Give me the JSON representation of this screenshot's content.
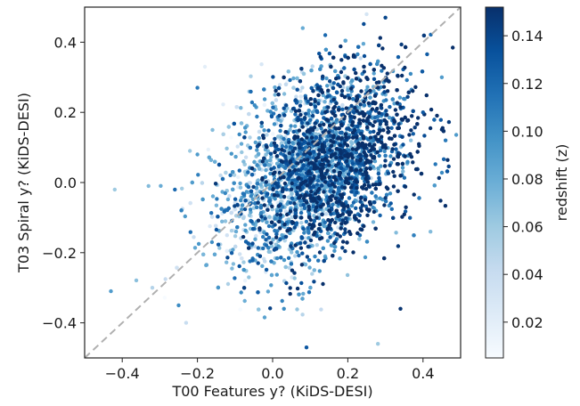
{
  "chart_data": {
    "type": "scatter",
    "xlabel": "T00 Features y? (KiDS-DESI)",
    "ylabel": "T03 Spiral y? (KiDS-DESI)",
    "xlim": [
      -0.5,
      0.5
    ],
    "ylim": [
      -0.5,
      0.5
    ],
    "x_ticks": [
      -0.4,
      -0.2,
      0.0,
      0.2,
      0.4
    ],
    "x_tick_labels": [
      "−0.4",
      "−0.2",
      "0.0",
      "0.2",
      "0.4"
    ],
    "y_ticks": [
      -0.4,
      -0.2,
      0.0,
      0.2,
      0.4
    ],
    "y_tick_labels": [
      "−0.4",
      "−0.2",
      "0.0",
      "0.2",
      "0.4"
    ],
    "grid": false,
    "reference_line": {
      "type": "y=x",
      "style": "dashed",
      "color": "#b0b0b0"
    },
    "colorbar": {
      "label": "redshift (z)",
      "colormap": "Blues",
      "range": [
        0.005,
        0.152
      ],
      "ticks": [
        0.02,
        0.04,
        0.06,
        0.08,
        0.1,
        0.12,
        0.14
      ],
      "tick_labels": [
        "0.02",
        "0.04",
        "0.06",
        "0.08",
        "0.10",
        "0.12",
        "0.14"
      ]
    },
    "point_density": "several thousand points, dense cloud centred near (0.12, 0.05), positively correlated",
    "points": [
      [
        -0.43,
        -0.31,
        0.09
      ],
      [
        -0.42,
        -0.02,
        0.06
      ],
      [
        -0.33,
        -0.01,
        0.07
      ],
      [
        -0.32,
        -0.3,
        0.05
      ],
      [
        -0.26,
        -0.02,
        0.12
      ],
      [
        -0.25,
        -0.35,
        0.1
      ],
      [
        -0.23,
        -0.4,
        0.04
      ],
      [
        -0.22,
        0.09,
        0.06
      ],
      [
        -0.2,
        0.08,
        0.09
      ],
      [
        -0.2,
        0.27,
        0.11
      ],
      [
        -0.16,
        0.15,
        0.07
      ],
      [
        -0.18,
        0.33,
        0.02
      ],
      [
        0.08,
        0.44,
        0.08
      ],
      [
        0.14,
        0.42,
        0.12
      ],
      [
        0.25,
        0.48,
        0.03
      ],
      [
        0.3,
        0.47,
        0.14
      ],
      [
        0.34,
        -0.36,
        0.15
      ],
      [
        0.28,
        -0.46,
        0.06
      ],
      [
        0.09,
        -0.47,
        0.13
      ],
      [
        0.03,
        -0.36,
        0.1
      ],
      [
        0.42,
        -0.14,
        0.07
      ],
      [
        0.45,
        0.3,
        0.09
      ],
      [
        0.46,
        0.12,
        0.11
      ],
      [
        0.4,
        0.2,
        0.13
      ]
    ]
  }
}
